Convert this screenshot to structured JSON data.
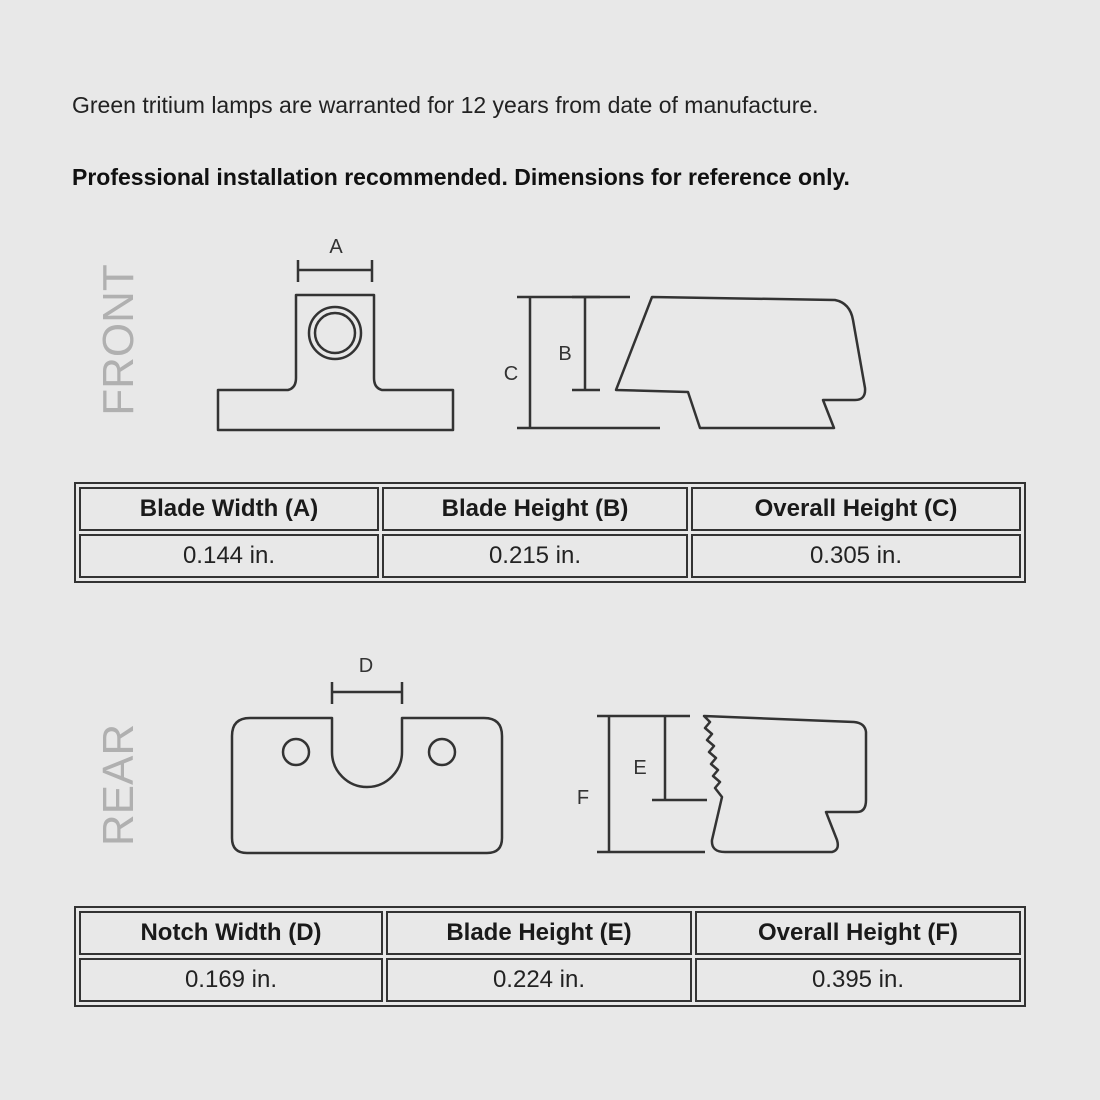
{
  "intro": {
    "warranty_text": "Green tritium lamps are warranted for 12 years from date of manufacture.",
    "notice_text": "Professional installation recommended. Dimensions for reference only."
  },
  "front": {
    "view_label": "FRONT",
    "dim_labels": {
      "a": "A",
      "b": "B",
      "c": "C"
    },
    "table": {
      "headers": [
        "Blade Width (A)",
        "Blade Height (B)",
        "Overall Height (C)"
      ],
      "values": [
        "0.144 in.",
        "0.215 in.",
        "0.305 in."
      ]
    }
  },
  "rear": {
    "view_label": "REAR",
    "dim_labels": {
      "d": "D",
      "e": "E",
      "f": "F"
    },
    "table": {
      "headers": [
        "Notch Width (D)",
        "Blade Height (E)",
        "Overall Height (F)"
      ],
      "values": [
        "0.169 in.",
        "0.224 in.",
        "0.395 in."
      ]
    }
  },
  "colors": {
    "background": "#e8e8e8",
    "line": "#333333",
    "view_label": "#b0b0b0"
  }
}
